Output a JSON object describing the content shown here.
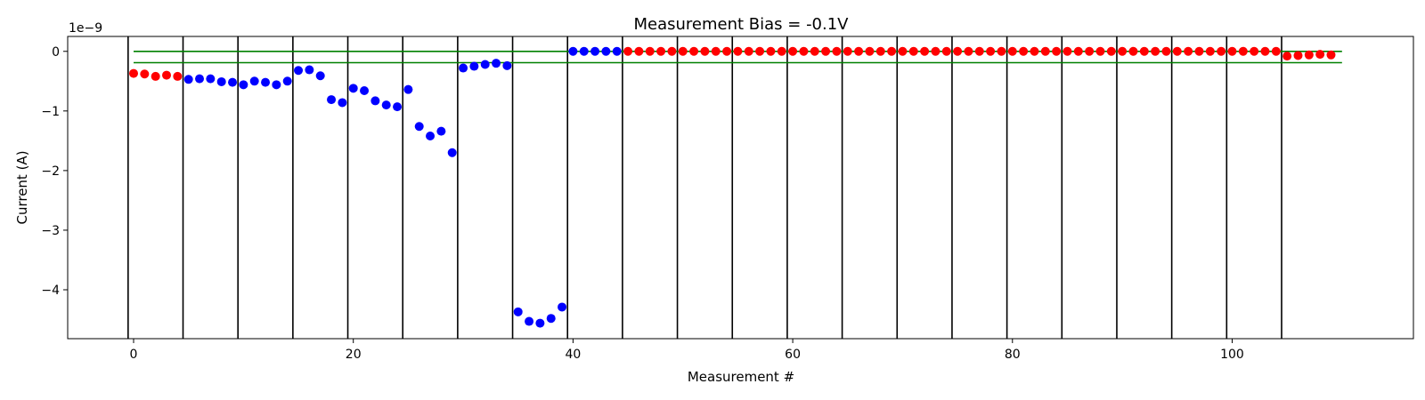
{
  "chart_data": {
    "type": "scatter",
    "title": "Measurement Bias = -0.1V",
    "xlabel": "Measurement #",
    "ylabel": "Current (A)",
    "y_offset_label": "1e−9",
    "xlim": [
      -6,
      116.5
    ],
    "ylim": [
      -4.82,
      0.25
    ],
    "y_scale_exponent": -9,
    "xticks": [
      0,
      20,
      40,
      60,
      80,
      100
    ],
    "xtick_labels": [
      "0",
      "20",
      "40",
      "60",
      "80",
      "100"
    ],
    "yticks": [
      0,
      -1,
      -2,
      -3,
      -4
    ],
    "ytick_labels": [
      "0",
      "−1",
      "−2",
      "−3",
      "−4"
    ],
    "vlines": [
      -0.5,
      4.5,
      9.5,
      14.5,
      19.5,
      24.5,
      29.5,
      34.5,
      39.5,
      44.5,
      49.5,
      54.5,
      59.5,
      64.5,
      69.5,
      74.5,
      79.5,
      84.5,
      89.5,
      94.5,
      99.5,
      104.5
    ],
    "hlines": [
      {
        "y": 0,
        "xmin": 0,
        "xmax": 110
      },
      {
        "y": -0.19,
        "xmin": 0,
        "xmax": 110
      }
    ],
    "colors": {
      "red": "#ff0000",
      "blue": "#0000ff",
      "threshold": "#008000",
      "divider": "#000000"
    },
    "grid": false,
    "points": [
      {
        "x": 0,
        "y": -0.37,
        "c": "red"
      },
      {
        "x": 1,
        "y": -0.38,
        "c": "red"
      },
      {
        "x": 2,
        "y": -0.42,
        "c": "red"
      },
      {
        "x": 3,
        "y": -0.4,
        "c": "red"
      },
      {
        "x": 4,
        "y": -0.42,
        "c": "red"
      },
      {
        "x": 5,
        "y": -0.47,
        "c": "blue"
      },
      {
        "x": 6,
        "y": -0.46,
        "c": "blue"
      },
      {
        "x": 7,
        "y": -0.46,
        "c": "blue"
      },
      {
        "x": 8,
        "y": -0.51,
        "c": "blue"
      },
      {
        "x": 9,
        "y": -0.52,
        "c": "blue"
      },
      {
        "x": 10,
        "y": -0.56,
        "c": "blue"
      },
      {
        "x": 11,
        "y": -0.5,
        "c": "blue"
      },
      {
        "x": 12,
        "y": -0.52,
        "c": "blue"
      },
      {
        "x": 13,
        "y": -0.56,
        "c": "blue"
      },
      {
        "x": 14,
        "y": -0.5,
        "c": "blue"
      },
      {
        "x": 15,
        "y": -0.32,
        "c": "blue"
      },
      {
        "x": 16,
        "y": -0.31,
        "c": "blue"
      },
      {
        "x": 17,
        "y": -0.41,
        "c": "blue"
      },
      {
        "x": 18,
        "y": -0.81,
        "c": "blue"
      },
      {
        "x": 19,
        "y": -0.86,
        "c": "blue"
      },
      {
        "x": 20,
        "y": -0.62,
        "c": "blue"
      },
      {
        "x": 21,
        "y": -0.66,
        "c": "blue"
      },
      {
        "x": 22,
        "y": -0.83,
        "c": "blue"
      },
      {
        "x": 23,
        "y": -0.9,
        "c": "blue"
      },
      {
        "x": 24,
        "y": -0.93,
        "c": "blue"
      },
      {
        "x": 25,
        "y": -0.64,
        "c": "blue"
      },
      {
        "x": 26,
        "y": -1.26,
        "c": "blue"
      },
      {
        "x": 27,
        "y": -1.42,
        "c": "blue"
      },
      {
        "x": 28,
        "y": -1.34,
        "c": "blue"
      },
      {
        "x": 29,
        "y": -1.7,
        "c": "blue"
      },
      {
        "x": 30,
        "y": -0.28,
        "c": "blue"
      },
      {
        "x": 31,
        "y": -0.25,
        "c": "blue"
      },
      {
        "x": 32,
        "y": -0.22,
        "c": "blue"
      },
      {
        "x": 33,
        "y": -0.2,
        "c": "blue"
      },
      {
        "x": 34,
        "y": -0.24,
        "c": "blue"
      },
      {
        "x": 35,
        "y": -4.37,
        "c": "blue"
      },
      {
        "x": 36,
        "y": -4.53,
        "c": "blue"
      },
      {
        "x": 37,
        "y": -4.56,
        "c": "blue"
      },
      {
        "x": 38,
        "y": -4.48,
        "c": "blue"
      },
      {
        "x": 39,
        "y": -4.29,
        "c": "blue"
      },
      {
        "x": 40,
        "y": 0.0,
        "c": "blue"
      },
      {
        "x": 41,
        "y": 0.0,
        "c": "blue"
      },
      {
        "x": 42,
        "y": 0.0,
        "c": "blue"
      },
      {
        "x": 43,
        "y": 0.0,
        "c": "blue"
      },
      {
        "x": 44,
        "y": 0.0,
        "c": "blue"
      },
      {
        "x": 45,
        "y": 0.0,
        "c": "red"
      },
      {
        "x": 46,
        "y": 0.0,
        "c": "red"
      },
      {
        "x": 47,
        "y": 0.0,
        "c": "red"
      },
      {
        "x": 48,
        "y": 0.0,
        "c": "red"
      },
      {
        "x": 49,
        "y": 0.0,
        "c": "red"
      },
      {
        "x": 50,
        "y": 0.0,
        "c": "red"
      },
      {
        "x": 51,
        "y": 0.0,
        "c": "red"
      },
      {
        "x": 52,
        "y": 0.0,
        "c": "red"
      },
      {
        "x": 53,
        "y": 0.0,
        "c": "red"
      },
      {
        "x": 54,
        "y": 0.0,
        "c": "red"
      },
      {
        "x": 55,
        "y": 0.0,
        "c": "red"
      },
      {
        "x": 56,
        "y": 0.0,
        "c": "red"
      },
      {
        "x": 57,
        "y": 0.0,
        "c": "red"
      },
      {
        "x": 58,
        "y": 0.0,
        "c": "red"
      },
      {
        "x": 59,
        "y": 0.0,
        "c": "red"
      },
      {
        "x": 60,
        "y": 0.0,
        "c": "red"
      },
      {
        "x": 61,
        "y": 0.0,
        "c": "red"
      },
      {
        "x": 62,
        "y": 0.0,
        "c": "red"
      },
      {
        "x": 63,
        "y": 0.0,
        "c": "red"
      },
      {
        "x": 64,
        "y": 0.0,
        "c": "red"
      },
      {
        "x": 65,
        "y": 0.0,
        "c": "red"
      },
      {
        "x": 66,
        "y": 0.0,
        "c": "red"
      },
      {
        "x": 67,
        "y": 0.0,
        "c": "red"
      },
      {
        "x": 68,
        "y": 0.0,
        "c": "red"
      },
      {
        "x": 69,
        "y": 0.0,
        "c": "red"
      },
      {
        "x": 70,
        "y": 0.0,
        "c": "red"
      },
      {
        "x": 71,
        "y": 0.0,
        "c": "red"
      },
      {
        "x": 72,
        "y": 0.0,
        "c": "red"
      },
      {
        "x": 73,
        "y": 0.0,
        "c": "red"
      },
      {
        "x": 74,
        "y": 0.0,
        "c": "red"
      },
      {
        "x": 75,
        "y": 0.0,
        "c": "red"
      },
      {
        "x": 76,
        "y": 0.0,
        "c": "red"
      },
      {
        "x": 77,
        "y": 0.0,
        "c": "red"
      },
      {
        "x": 78,
        "y": 0.0,
        "c": "red"
      },
      {
        "x": 79,
        "y": 0.0,
        "c": "red"
      },
      {
        "x": 80,
        "y": 0.0,
        "c": "red"
      },
      {
        "x": 81,
        "y": 0.0,
        "c": "red"
      },
      {
        "x": 82,
        "y": 0.0,
        "c": "red"
      },
      {
        "x": 83,
        "y": 0.0,
        "c": "red"
      },
      {
        "x": 84,
        "y": 0.0,
        "c": "red"
      },
      {
        "x": 85,
        "y": 0.0,
        "c": "red"
      },
      {
        "x": 86,
        "y": 0.0,
        "c": "red"
      },
      {
        "x": 87,
        "y": 0.0,
        "c": "red"
      },
      {
        "x": 88,
        "y": 0.0,
        "c": "red"
      },
      {
        "x": 89,
        "y": 0.0,
        "c": "red"
      },
      {
        "x": 90,
        "y": 0.0,
        "c": "red"
      },
      {
        "x": 91,
        "y": 0.0,
        "c": "red"
      },
      {
        "x": 92,
        "y": 0.0,
        "c": "red"
      },
      {
        "x": 93,
        "y": 0.0,
        "c": "red"
      },
      {
        "x": 94,
        "y": 0.0,
        "c": "red"
      },
      {
        "x": 95,
        "y": 0.0,
        "c": "red"
      },
      {
        "x": 96,
        "y": 0.0,
        "c": "red"
      },
      {
        "x": 97,
        "y": 0.0,
        "c": "red"
      },
      {
        "x": 98,
        "y": 0.0,
        "c": "red"
      },
      {
        "x": 99,
        "y": 0.0,
        "c": "red"
      },
      {
        "x": 100,
        "y": 0.0,
        "c": "red"
      },
      {
        "x": 101,
        "y": 0.0,
        "c": "red"
      },
      {
        "x": 102,
        "y": 0.0,
        "c": "red"
      },
      {
        "x": 103,
        "y": 0.0,
        "c": "red"
      },
      {
        "x": 104,
        "y": 0.0,
        "c": "red"
      },
      {
        "x": 105,
        "y": -0.08,
        "c": "red"
      },
      {
        "x": 106,
        "y": -0.07,
        "c": "red"
      },
      {
        "x": 107,
        "y": -0.06,
        "c": "red"
      },
      {
        "x": 108,
        "y": -0.05,
        "c": "red"
      },
      {
        "x": 109,
        "y": -0.06,
        "c": "red"
      }
    ]
  }
}
